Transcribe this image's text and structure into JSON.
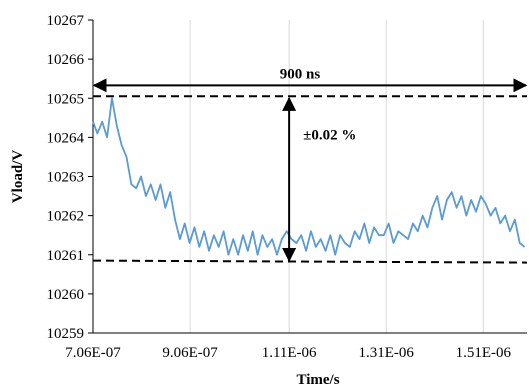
{
  "chart_data": {
    "type": "line",
    "title": "",
    "xlabel": "Time/s",
    "ylabel": "Vload/V",
    "xlim": [
      7.06e-07,
      1.6e-06
    ],
    "ylim": [
      10259,
      10267
    ],
    "x_ticks": [
      7.06e-07,
      9.06e-07,
      1.11e-06,
      1.31e-06,
      1.51e-06
    ],
    "x_tick_labels": [
      "7.06E-07",
      "9.06E-07",
      "1.11E-06",
      "1.31E-06",
      "1.51E-06"
    ],
    "y_ticks": [
      10259,
      10260,
      10261,
      10262,
      10263,
      10264,
      10265,
      10266,
      10267
    ],
    "y_tick_labels": [
      "10259",
      "10260",
      "10261",
      "10262",
      "10263",
      "10264",
      "10265",
      "10266",
      "10267"
    ],
    "grid": "vertical",
    "line_color": "#5b9bd5",
    "series": [
      {
        "x": [
          7.06e-07,
          7.15e-07,
          7.25e-07,
          7.35e-07,
          7.45e-07,
          7.55e-07,
          7.65e-07,
          7.75e-07,
          7.85e-07,
          7.95e-07,
          8.05e-07,
          8.15e-07,
          8.25e-07,
          8.35e-07,
          8.45e-07,
          8.55e-07,
          8.65e-07,
          8.75e-07,
          8.85e-07,
          8.95e-07,
          9.05e-07,
          9.15e-07,
          9.25e-07,
          9.35e-07,
          9.45e-07,
          9.55e-07,
          9.65e-07,
          9.75e-07,
          9.85e-07,
          9.95e-07,
          1.005e-06,
          1.015e-06,
          1.025e-06,
          1.035e-06,
          1.045e-06,
          1.055e-06,
          1.065e-06,
          1.075e-06,
          1.085e-06,
          1.095e-06,
          1.105e-06,
          1.115e-06,
          1.125e-06,
          1.135e-06,
          1.145e-06,
          1.155e-06,
          1.165e-06,
          1.175e-06,
          1.185e-06,
          1.195e-06,
          1.205e-06,
          1.215e-06,
          1.225e-06,
          1.235e-06,
          1.245e-06,
          1.255e-06,
          1.265e-06,
          1.275e-06,
          1.285e-06,
          1.295e-06,
          1.305e-06,
          1.315e-06,
          1.325e-06,
          1.335e-06,
          1.345e-06,
          1.355e-06,
          1.365e-06,
          1.375e-06,
          1.385e-06,
          1.395e-06,
          1.405e-06,
          1.415e-06,
          1.425e-06,
          1.435e-06,
          1.445e-06,
          1.455e-06,
          1.465e-06,
          1.475e-06,
          1.485e-06,
          1.495e-06,
          1.505e-06,
          1.515e-06,
          1.525e-06,
          1.535e-06,
          1.545e-06,
          1.555e-06,
          1.565e-06,
          1.575e-06,
          1.585e-06,
          1.595e-06
        ],
        "values": [
          10264.4,
          10264.1,
          10264.4,
          10264.0,
          10265.0,
          10264.3,
          10263.8,
          10263.5,
          10262.8,
          10262.7,
          10263.0,
          10262.5,
          10262.8,
          10262.4,
          10262.8,
          10262.2,
          10262.6,
          10261.9,
          10261.4,
          10261.8,
          10261.3,
          10261.7,
          10261.2,
          10261.6,
          10261.1,
          10261.5,
          10261.2,
          10261.6,
          10261.0,
          10261.4,
          10261.0,
          10261.5,
          10261.1,
          10261.6,
          10261.0,
          10261.5,
          10261.2,
          10261.4,
          10261.0,
          10261.4,
          10261.6,
          10261.4,
          10261.3,
          10261.5,
          10261.1,
          10261.6,
          10261.2,
          10261.4,
          10261.1,
          10261.5,
          10261.0,
          10261.5,
          10261.3,
          10261.2,
          10261.6,
          10261.4,
          10261.8,
          10261.3,
          10261.7,
          10261.5,
          10261.5,
          10261.8,
          10261.3,
          10261.6,
          10261.5,
          10261.4,
          10261.8,
          10261.6,
          10262.0,
          10261.7,
          10262.2,
          10262.5,
          10261.9,
          10262.4,
          10262.6,
          10262.2,
          10262.5,
          10262.0,
          10262.4,
          10262.1,
          10262.5,
          10262.3,
          10262.0,
          10262.2,
          10261.8,
          10262.0,
          10261.6,
          10261.9,
          10261.3,
          10261.2
        ]
      }
    ],
    "reference_lines": [
      {
        "y_start": 10265.05,
        "y_end": 10265.05
      },
      {
        "y_start": 10260.85,
        "y_end": 10260.8
      }
    ],
    "annotations": [
      {
        "text": "900 ns",
        "kind": "horizontal-span",
        "x_start": 7.06e-07,
        "x_end": 1.6e-06,
        "y": 10265.33
      },
      {
        "text": "±0.02 %",
        "kind": "vertical-span",
        "x": 1.11e-06,
        "y_start": 10265.0,
        "y_end": 10260.85
      }
    ]
  }
}
